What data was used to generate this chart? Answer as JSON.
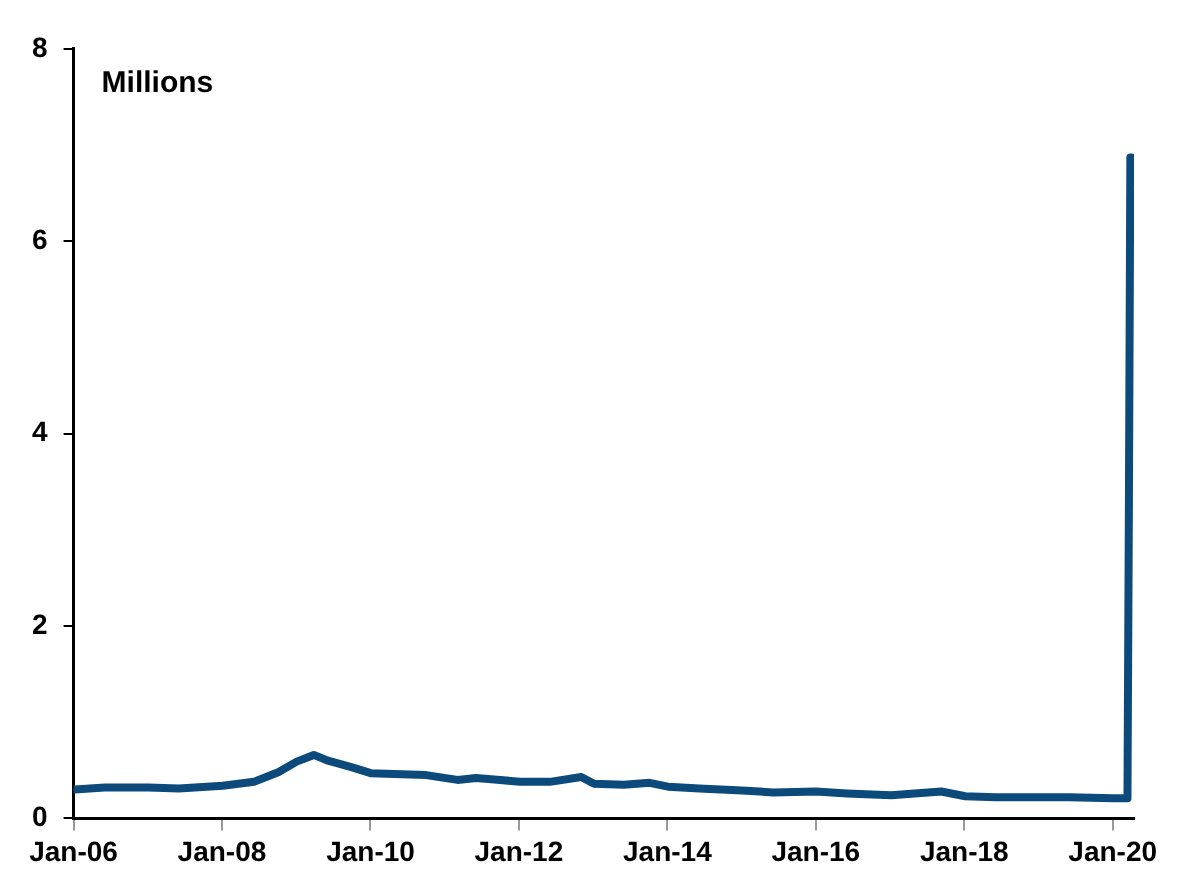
{
  "chart_data": {
    "type": "line",
    "annotations": [
      "Millions"
    ],
    "x": [
      "2006-01-07",
      "2006-06-03",
      "2007-01-06",
      "2007-06-02",
      "2008-01-05",
      "2008-06-07",
      "2008-10-04",
      "2009-01-03",
      "2009-03-28",
      "2009-06-06",
      "2009-10-03",
      "2010-01-02",
      "2010-06-05",
      "2010-10-02",
      "2011-03-05",
      "2011-06-04",
      "2011-10-01",
      "2012-01-07",
      "2012-06-02",
      "2012-11-03",
      "2013-01-05",
      "2013-06-01",
      "2013-10-05",
      "2014-01-04",
      "2014-06-07",
      "2015-01-03",
      "2015-06-06",
      "2016-01-02",
      "2016-06-04",
      "2017-01-07",
      "2017-09-09",
      "2018-01-06",
      "2018-06-02",
      "2019-01-05",
      "2019-06-01",
      "2020-01-04",
      "2020-03-07",
      "2020-03-14",
      "2020-03-21",
      "2020-03-28",
      "2020-04-04"
    ],
    "series": [
      {
        "color": "#0d4a7c",
        "values": [
          0.3,
          0.32,
          0.32,
          0.31,
          0.34,
          0.38,
          0.48,
          0.59,
          0.66,
          0.6,
          0.53,
          0.47,
          0.46,
          0.45,
          0.4,
          0.42,
          0.4,
          0.38,
          0.38,
          0.43,
          0.36,
          0.35,
          0.37,
          0.33,
          0.31,
          0.29,
          0.27,
          0.28,
          0.26,
          0.24,
          0.28,
          0.23,
          0.22,
          0.22,
          0.22,
          0.21,
          0.21,
          0.28,
          3.3,
          6.87,
          6.6
        ]
      }
    ],
    "xlim": [
      "2006-01-01",
      "2020-04-15"
    ],
    "xticks": [
      {
        "value": "2006-01-01",
        "label": "Jan-06"
      },
      {
        "value": "2008-01-01",
        "label": "Jan-08"
      },
      {
        "value": "2010-01-01",
        "label": "Jan-10"
      },
      {
        "value": "2012-01-01",
        "label": "Jan-12"
      },
      {
        "value": "2014-01-01",
        "label": "Jan-14"
      },
      {
        "value": "2016-01-01",
        "label": "Jan-16"
      },
      {
        "value": "2018-01-01",
        "label": "Jan-18"
      },
      {
        "value": "2020-01-01",
        "label": "Jan-20"
      }
    ],
    "ylim": [
      0,
      8
    ],
    "yticks": [
      0,
      2,
      4,
      6,
      8
    ],
    "grid": false,
    "legend": false,
    "marker": "none",
    "line_style": "solid"
  }
}
